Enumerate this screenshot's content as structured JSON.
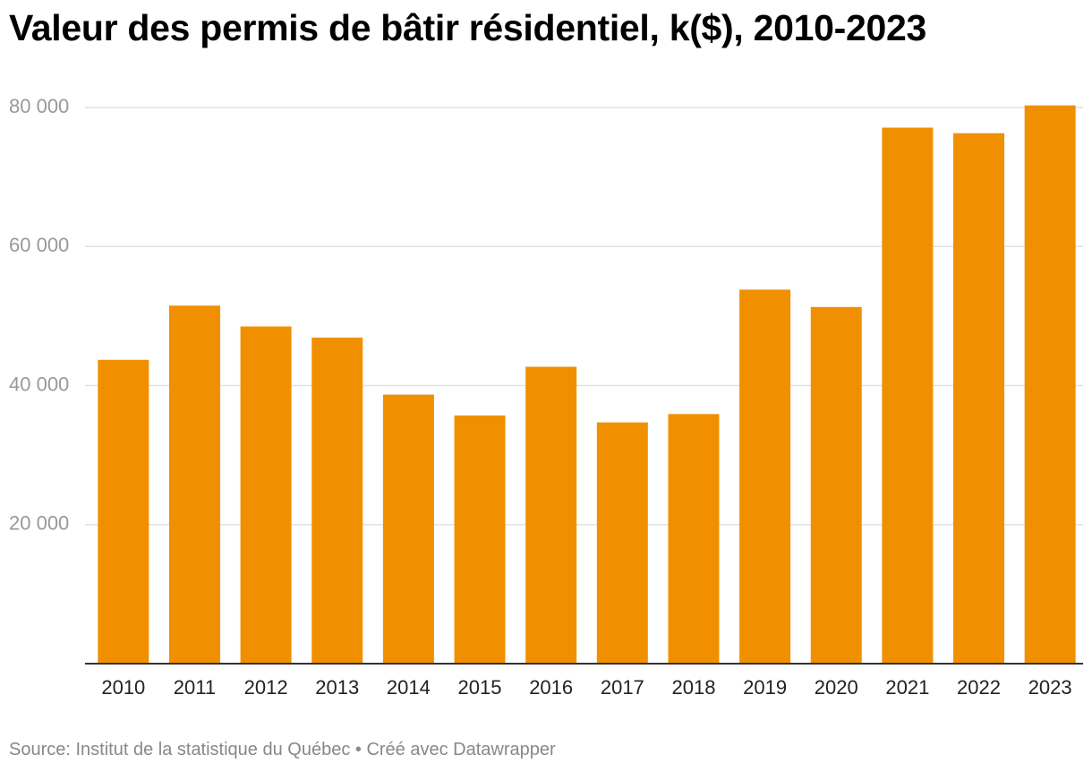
{
  "chart_data": {
    "type": "bar",
    "title": "Valeur des permis de bâtir résidentiel, k($), 2010-2023",
    "xlabel": "",
    "ylabel": "",
    "categories": [
      "2010",
      "2011",
      "2012",
      "2013",
      "2014",
      "2015",
      "2016",
      "2017",
      "2018",
      "2019",
      "2020",
      "2021",
      "2022",
      "2023"
    ],
    "values": [
      43700,
      51500,
      48500,
      46900,
      38700,
      35700,
      42700,
      34700,
      35900,
      53800,
      51300,
      77100,
      76300,
      80300
    ],
    "ylim": [
      0,
      80000
    ],
    "yticks": [
      20000,
      40000,
      60000,
      80000
    ],
    "ytick_labels": [
      "20 000",
      "40 000",
      "60 000",
      "80 000"
    ],
    "grid": true,
    "legend": "none",
    "bar_color": "#f09000",
    "gridline_color": "#e2e2e2",
    "axis_color": "#333333"
  },
  "footer": {
    "source": "Source: Institut de la statistique du Québec • Créé avec Datawrapper"
  }
}
